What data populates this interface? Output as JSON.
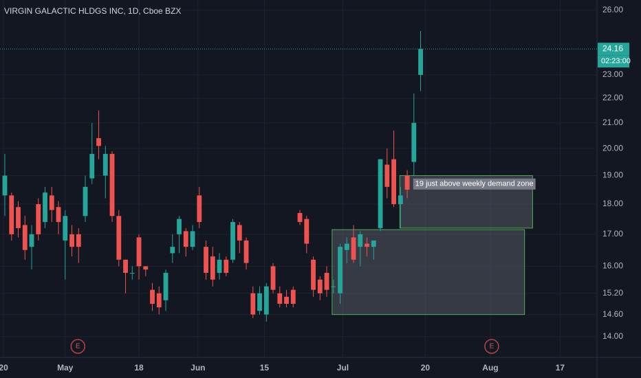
{
  "chart_data": {
    "type": "candlestick",
    "title": "VIRGIN GALACTIC HLDGS INC, 1D, Cboe BZX",
    "open": [
      18.3,
      18.3,
      17.9,
      17.3,
      16.6,
      18.0,
      17.4,
      18.3,
      17.9,
      16.8,
      17.0,
      17.0,
      17.6,
      18.9,
      20.4,
      19.0,
      19.8,
      17.6,
      16.2,
      15.8,
      16.9,
      16.0,
      15.3,
      15.2,
      15.0,
      16.4,
      17.0,
      17.1,
      16.6,
      18.3,
      16.6,
      16.3,
      15.8,
      16.2,
      16.2,
      17.3,
      16.8,
      15.2,
      14.7,
      14.6,
      16.0,
      15.2,
      15.1,
      15.3,
      17.7,
      17.5,
      16.2,
      15.6,
      15.8,
      15.4,
      15.2,
      16.5,
      16.9,
      16.6,
      16.7,
      16.6,
      17.2,
      19.4,
      19.6,
      18.0,
      19.0,
      19.5,
      23.0
    ],
    "high": [
      19.8,
      18.4,
      18.1,
      17.6,
      17.3,
      18.2,
      18.6,
      18.6,
      18.1,
      17.8,
      17.3,
      17.2,
      19.0,
      21.0,
      21.5,
      20.1,
      19.9,
      17.8,
      16.2,
      16.0,
      17.0,
      16.0,
      15.5,
      15.4,
      15.9,
      17.0,
      17.6,
      17.2,
      17.3,
      18.6,
      16.8,
      16.6,
      16.4,
      16.3,
      17.5,
      17.4,
      16.9,
      15.4,
      15.4,
      15.5,
      16.1,
      15.4,
      15.3,
      15.4,
      17.8,
      17.6,
      16.3,
      15.7,
      16.0,
      15.6,
      16.7,
      16.9,
      17.3,
      17.1,
      16.9,
      16.8,
      19.6,
      20.0,
      20.7,
      18.6,
      19.2,
      22.2,
      25.0
    ],
    "low": [
      17.6,
      16.8,
      16.9,
      16.2,
      15.9,
      16.8,
      17.2,
      17.4,
      17.0,
      15.6,
      16.3,
      16.1,
      17.4,
      18.7,
      19.6,
      18.2,
      17.4,
      16.0,
      15.2,
      15.6,
      15.6,
      15.7,
      14.7,
      14.6,
      14.7,
      16.1,
      16.4,
      16.3,
      16.5,
      17.2,
      15.6,
      15.4,
      15.6,
      15.7,
      16.1,
      16.4,
      15.9,
      14.5,
      14.6,
      14.4,
      15.2,
      14.8,
      14.8,
      14.8,
      17.3,
      16.4,
      15.1,
      15.0,
      15.1,
      15.2,
      14.9,
      16.1,
      16.1,
      16.0,
      16.3,
      16.2,
      17.1,
      18.2,
      17.9,
      17.2,
      18.2,
      19.0,
      22.3
    ],
    "close": [
      19.0,
      17.0,
      17.2,
      16.5,
      17.0,
      17.0,
      18.4,
      17.8,
      17.4,
      17.6,
      16.6,
      16.6,
      18.6,
      19.8,
      20.1,
      19.8,
      17.6,
      16.2,
      15.8,
      15.8,
      16.0,
      15.9,
      14.9,
      14.8,
      15.8,
      16.6,
      17.5,
      16.6,
      17.1,
      17.4,
      15.8,
      15.6,
      16.2,
      15.8,
      17.4,
      16.8,
      16.1,
      14.6,
      15.2,
      15.4,
      15.3,
      14.9,
      14.9,
      14.9,
      17.4,
      16.7,
      15.3,
      15.2,
      15.3,
      15.4,
      16.6,
      16.7,
      16.2,
      17.0,
      16.6,
      16.8,
      19.6,
      18.6,
      18.0,
      18.3,
      18.5,
      21.0,
      24.16
    ],
    "up_color": "#26a69a",
    "down_color": "#ef5350",
    "xlim": [
      -0.72,
      88.3
    ],
    "xticks": [
      {
        "value": -0.2,
        "label": "20"
      },
      {
        "value": 9,
        "label": "May"
      },
      {
        "value": 20,
        "label": "18"
      },
      {
        "value": 28.8,
        "label": "Jun"
      },
      {
        "value": 38.7,
        "label": "15"
      },
      {
        "value": 50.4,
        "label": "Jul"
      },
      {
        "value": 62.7,
        "label": "20"
      },
      {
        "value": 72.4,
        "label": "Aug"
      },
      {
        "value": 82.8,
        "label": "17"
      }
    ],
    "ylim": [
      13.46,
      26.51
    ],
    "log_scale": true,
    "grid": true,
    "yticks": [
      {
        "value": 26,
        "label": "26.00"
      },
      {
        "value": 23,
        "label": "23.00"
      },
      {
        "value": 22,
        "label": "22.00"
      },
      {
        "value": 21,
        "label": "21.00"
      },
      {
        "value": 20,
        "label": "20.00"
      },
      {
        "value": 19,
        "label": "19.00"
      },
      {
        "value": 18,
        "label": "18.00"
      },
      {
        "value": 17,
        "label": "17.00"
      },
      {
        "value": 16,
        "label": "16.00"
      },
      {
        "value": 15.2,
        "label": "15.20"
      },
      {
        "value": 14.6,
        "label": "14.60"
      },
      {
        "value": 14,
        "label": "14.00"
      }
    ],
    "countdown": "02:23:00",
    "zones": [
      {
        "x0": 48.8,
        "x1": 77.5,
        "top": 17.15,
        "bottom": 14.6
      },
      {
        "x0": 58.9,
        "x1": 78.7,
        "top": 19.0,
        "bottom": 17.2
      }
    ],
    "annotation": {
      "text": "19 just above weekly demand zone",
      "x": 61,
      "y": 18.7
    },
    "earnings": [
      {
        "x": 10.9,
        "label": "E"
      },
      {
        "x": 72.6,
        "label": "E"
      }
    ]
  }
}
